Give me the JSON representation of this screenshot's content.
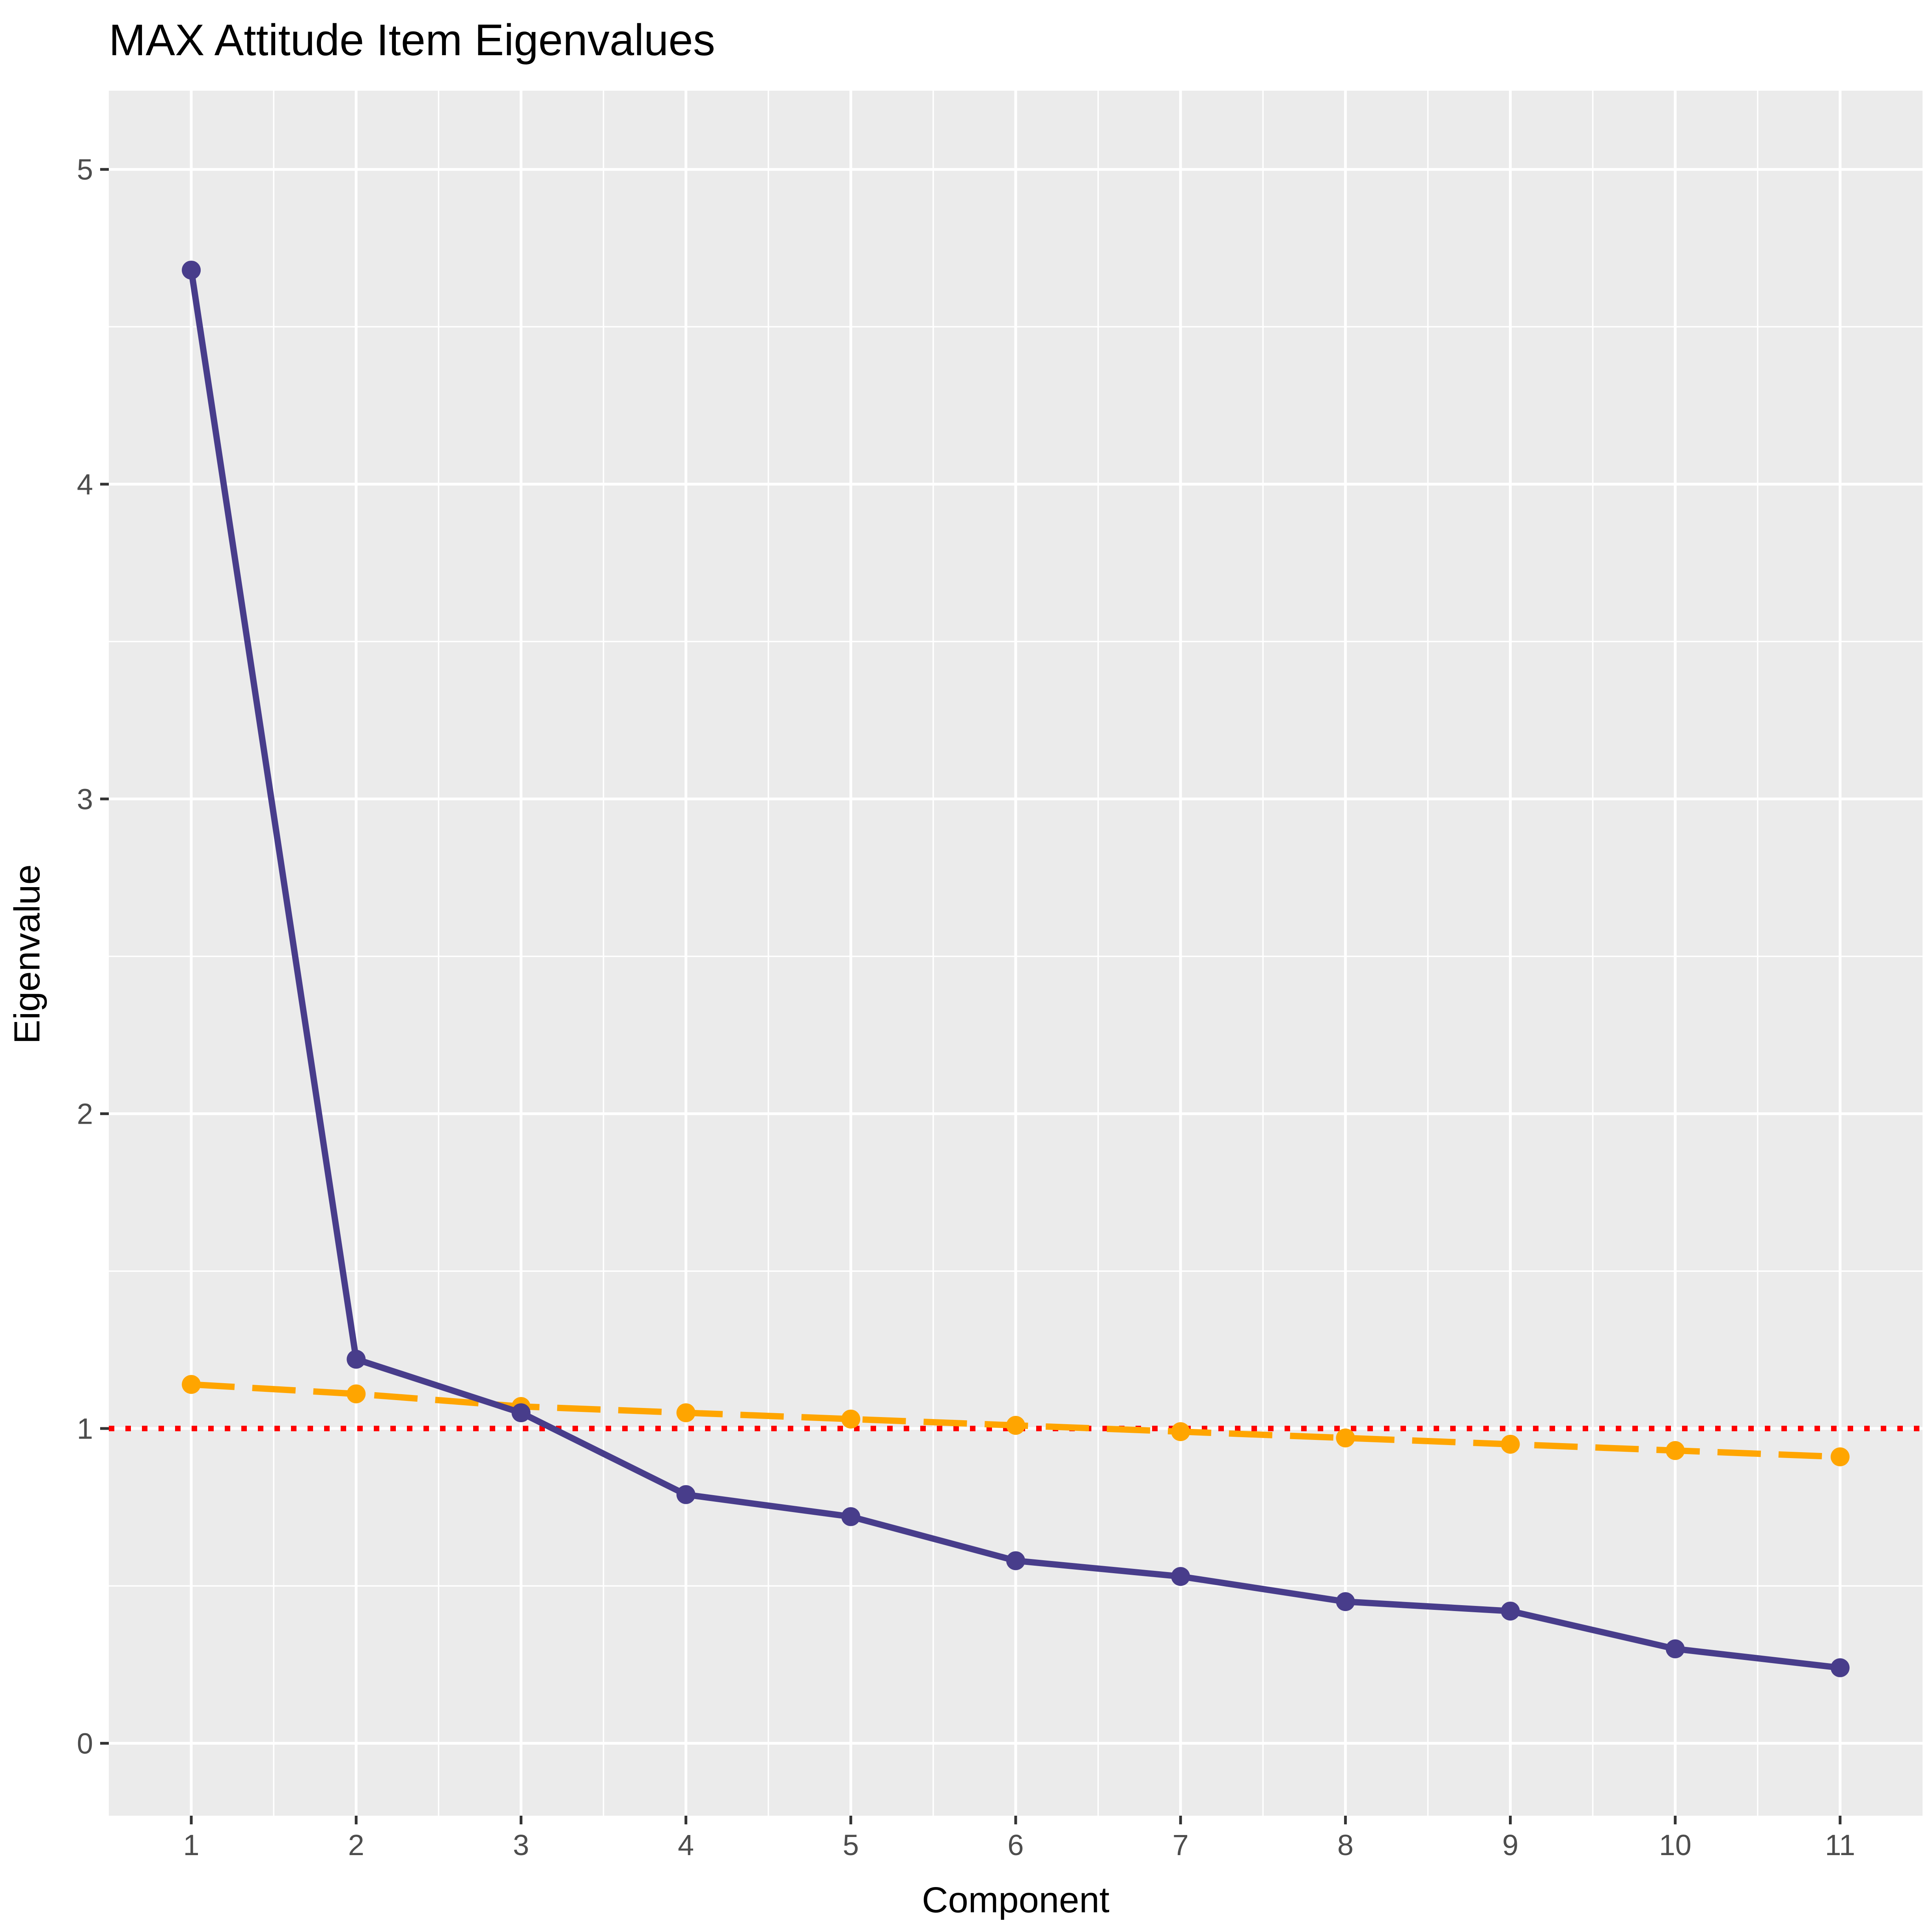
{
  "chart_data": {
    "type": "line",
    "title": "MAX Attitude Item Eigenvalues",
    "xlabel": "Component",
    "ylabel": "Eigenvalue",
    "x": [
      1,
      2,
      3,
      4,
      5,
      6,
      7,
      8,
      9,
      10,
      11
    ],
    "xlim": [
      0.5,
      11.5
    ],
    "ylim": [
      -0.23,
      5.25
    ],
    "xticks": [
      1,
      2,
      3,
      4,
      5,
      6,
      7,
      8,
      9,
      10,
      11
    ],
    "yticks": [
      0,
      1,
      2,
      3,
      4,
      5
    ],
    "grid": true,
    "series": [
      {
        "color": "#483D8B",
        "linestyle": "solid",
        "values": [
          4.68,
          1.22,
          1.05,
          0.79,
          0.72,
          0.58,
          0.53,
          0.45,
          0.42,
          0.3,
          0.24
        ]
      },
      {
        "color": "#FFA500",
        "linestyle": "dashed",
        "values": [
          1.14,
          1.11,
          1.07,
          1.05,
          1.03,
          1.01,
          0.99,
          0.97,
          0.95,
          0.93,
          0.91
        ]
      }
    ],
    "reference_line": {
      "y": 1,
      "color": "#FF0000",
      "linestyle": "dotted"
    }
  }
}
